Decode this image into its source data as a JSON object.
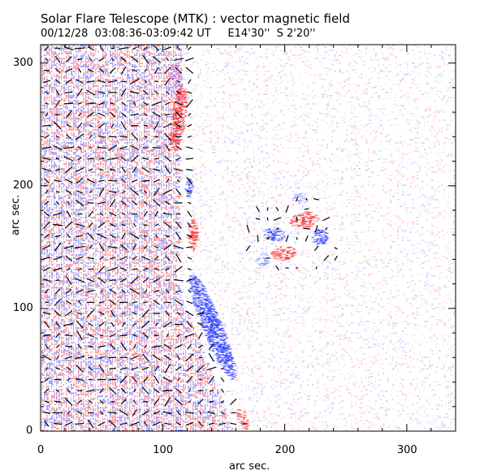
{
  "figure": {
    "title": "Solar Flare Telescope (MTK) : vector magnetic field",
    "subtitle": "00/12/28  03:08:36-03:09:42 UT     E14'30''  S 2'20''"
  },
  "chart_data": {
    "type": "heatmap",
    "xlabel": "arc sec.",
    "ylabel": "arc sec.",
    "xlim": [
      0,
      340
    ],
    "ylim": [
      0,
      315
    ],
    "x_ticks": [
      "0",
      "100",
      "200",
      "300"
    ],
    "y_ticks": [
      "0",
      "100",
      "200",
      "300"
    ],
    "x_tick_values": [
      0,
      100,
      200,
      300
    ],
    "y_tick_values": [
      0,
      100,
      200,
      300
    ],
    "colors": {
      "positive_polarity": "#ff3030",
      "negative_polarity": "#2a3cff",
      "vectors": "#000000",
      "background": "#ffffff"
    }
  }
}
